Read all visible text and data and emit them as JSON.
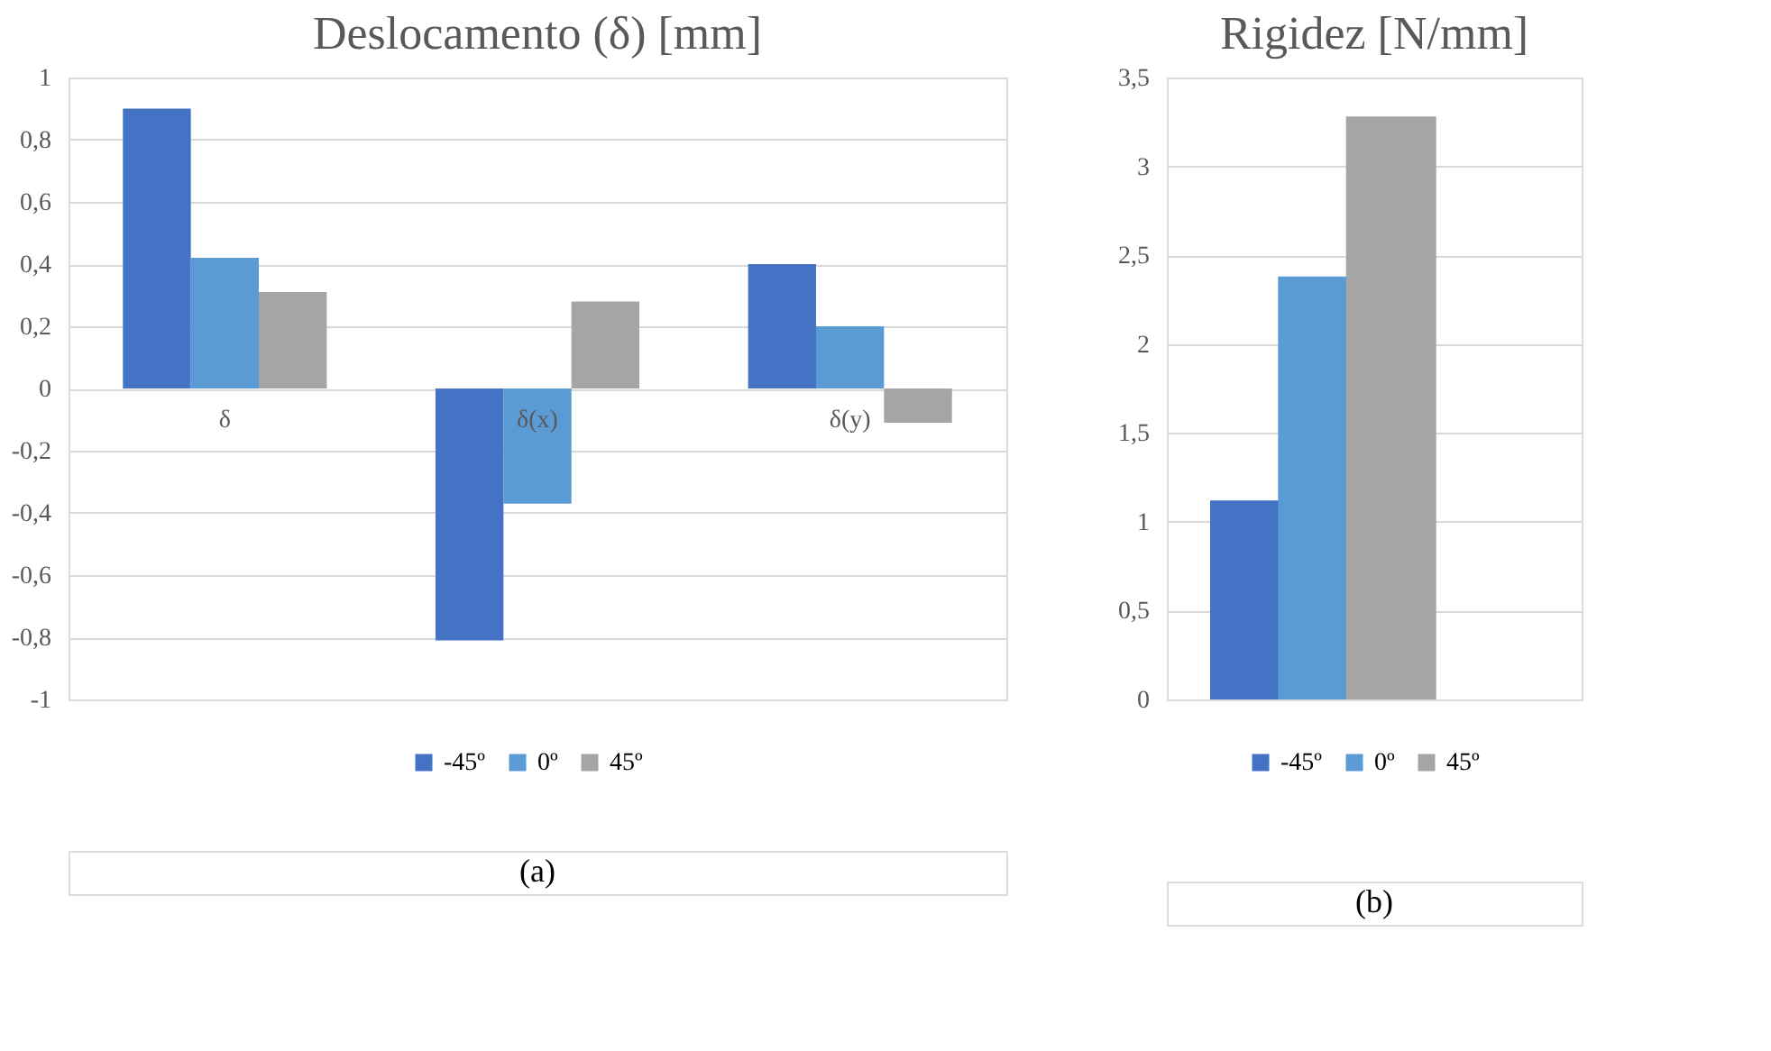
{
  "chart_data": [
    {
      "type": "bar",
      "title": "Deslocamento (δ) [mm]",
      "categories": [
        "δ",
        "δ(x)",
        "δ(y)"
      ],
      "series": [
        {
          "name": "-45º",
          "color": "#4472c4",
          "values": [
            0.9,
            -0.81,
            0.4
          ]
        },
        {
          "name": "0º",
          "color": "#5b9bd5",
          "values": [
            0.42,
            -0.37,
            0.2
          ]
        },
        {
          "name": "45º",
          "color": "#a5a5a5",
          "values": [
            0.31,
            0.28,
            -0.11
          ]
        }
      ],
      "ylim": [
        -1,
        1
      ],
      "yticks": [
        -1,
        {
          "value": -0.8,
          "label": "-0,8"
        },
        {
          "value": -0.6,
          "label": "-0,6"
        },
        {
          "value": -0.4,
          "label": "-0,4"
        },
        {
          "value": -0.2,
          "label": "-0,2"
        },
        0,
        {
          "value": 0.2,
          "label": "0,2"
        },
        {
          "value": 0.4,
          "label": "0,4"
        },
        {
          "value": 0.6,
          "label": "0,6"
        },
        {
          "value": 0.8,
          "label": "0,8"
        },
        1
      ],
      "grid": "y",
      "legend": "bottom",
      "annotations": [
        "(a)"
      ]
    },
    {
      "type": "bar",
      "title": "Rigidez [N/mm]",
      "categories": [
        null
      ],
      "series": [
        {
          "name": "-45º",
          "color": "#4472c4",
          "values": [
            1.12
          ]
        },
        {
          "name": "0º",
          "color": "#5b9bd5",
          "values": [
            2.38
          ]
        },
        {
          "name": "45º",
          "color": "#a5a5a5",
          "values": [
            3.28
          ]
        }
      ],
      "ylim": [
        0,
        3.5
      ],
      "yticks": [
        0,
        {
          "value": 0.5,
          "label": "0,5"
        },
        1,
        {
          "value": 1.5,
          "label": "1,5"
        },
        2,
        {
          "value": 2.5,
          "label": "2,5"
        },
        3,
        {
          "value": 3.5,
          "label": "3,5"
        }
      ],
      "grid": "y",
      "legend": "bottom",
      "annotations": [
        "(b)"
      ]
    }
  ]
}
